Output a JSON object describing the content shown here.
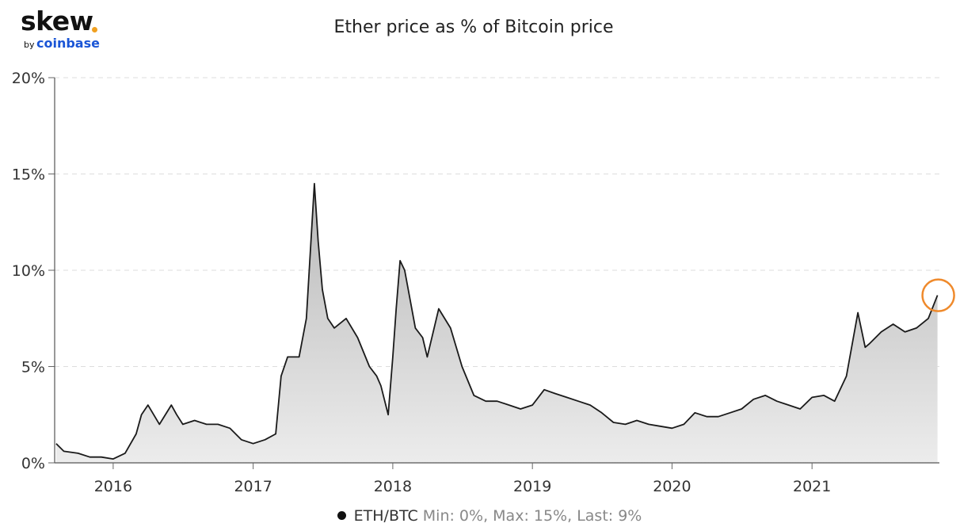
{
  "logo": {
    "main": "skew",
    "by": "by",
    "sub": "coinbase",
    "accent_color": "#f0a020",
    "sub_color": "#1a55d6"
  },
  "legend": {
    "name": "ETH/BTC",
    "stats": "Min: 0%, Max: 15%, Last: 9%"
  },
  "chart_data": {
    "type": "area",
    "title": "Ether price as % of Bitcoin price",
    "xlabel": "",
    "ylabel": "",
    "ylim": [
      0,
      20
    ],
    "xlim": [
      "2015-08-01",
      "2021-11-30"
    ],
    "y_ticks": [
      0,
      5,
      10,
      15,
      20
    ],
    "y_tick_labels": [
      "0%",
      "5%",
      "10%",
      "15%",
      "20%"
    ],
    "x_ticks": [
      "2016-01-01",
      "2017-01-01",
      "2018-01-01",
      "2019-01-01",
      "2020-01-01",
      "2021-01-01"
    ],
    "x_tick_labels": [
      "2016",
      "2017",
      "2018",
      "2019",
      "2020",
      "2021"
    ],
    "grid": "horizontal-dashed",
    "legend_position": "bottom-center",
    "line_color": "#1a1a1a",
    "fill_top_color": "#b8b8b8",
    "fill_bottom_color": "#ececec",
    "highlight_circle_color": "#ef8a2c",
    "series": [
      {
        "name": "ETH/BTC",
        "x": [
          "2015-08-05",
          "2015-08-25",
          "2015-10-01",
          "2015-11-01",
          "2015-12-01",
          "2016-01-01",
          "2016-02-01",
          "2016-03-01",
          "2016-03-15",
          "2016-04-01",
          "2016-05-01",
          "2016-06-01",
          "2016-06-15",
          "2016-07-01",
          "2016-08-01",
          "2016-09-01",
          "2016-10-01",
          "2016-11-01",
          "2016-12-01",
          "2017-01-01",
          "2017-02-01",
          "2017-03-01",
          "2017-03-15",
          "2017-04-01",
          "2017-05-01",
          "2017-05-20",
          "2017-06-10",
          "2017-06-20",
          "2017-07-01",
          "2017-07-15",
          "2017-08-01",
          "2017-09-01",
          "2017-10-01",
          "2017-11-01",
          "2017-11-20",
          "2017-12-01",
          "2017-12-20",
          "2018-01-01",
          "2018-01-10",
          "2018-01-20",
          "2018-02-01",
          "2018-03-01",
          "2018-03-20",
          "2018-04-01",
          "2018-05-01",
          "2018-06-01",
          "2018-07-01",
          "2018-08-01",
          "2018-09-01",
          "2018-10-01",
          "2018-11-01",
          "2018-12-01",
          "2019-01-01",
          "2019-02-01",
          "2019-03-01",
          "2019-04-01",
          "2019-05-01",
          "2019-06-01",
          "2019-07-01",
          "2019-08-01",
          "2019-09-01",
          "2019-10-01",
          "2019-11-01",
          "2019-12-01",
          "2020-01-01",
          "2020-02-01",
          "2020-03-01",
          "2020-04-01",
          "2020-05-01",
          "2020-06-01",
          "2020-07-01",
          "2020-08-01",
          "2020-09-01",
          "2020-10-01",
          "2020-11-01",
          "2020-12-01",
          "2021-01-01",
          "2021-02-01",
          "2021-03-01",
          "2021-04-01",
          "2021-05-01",
          "2021-05-20",
          "2021-06-01",
          "2021-07-01",
          "2021-08-01",
          "2021-09-01",
          "2021-10-01",
          "2021-11-01",
          "2021-11-25"
        ],
        "values": [
          1.0,
          0.6,
          0.5,
          0.3,
          0.3,
          0.2,
          0.5,
          1.5,
          2.5,
          3.0,
          2.0,
          3.0,
          2.5,
          2.0,
          2.2,
          2.0,
          2.0,
          1.8,
          1.2,
          1.0,
          1.2,
          1.5,
          4.5,
          5.5,
          5.5,
          7.5,
          14.5,
          11.5,
          9.0,
          7.5,
          7.0,
          7.5,
          6.5,
          5.0,
          4.5,
          4.0,
          2.5,
          5.5,
          8.0,
          10.5,
          10.0,
          7.0,
          6.5,
          5.5,
          8.0,
          7.0,
          5.0,
          3.5,
          3.2,
          3.2,
          3.0,
          2.8,
          3.0,
          3.8,
          3.6,
          3.4,
          3.2,
          3.0,
          2.6,
          2.1,
          2.0,
          2.2,
          2.0,
          1.9,
          1.8,
          2.0,
          2.6,
          2.4,
          2.4,
          2.6,
          2.8,
          3.3,
          3.5,
          3.2,
          3.0,
          2.8,
          3.4,
          3.5,
          3.2,
          4.5,
          7.8,
          6.0,
          6.2,
          6.8,
          7.2,
          6.8,
          7.0,
          7.5,
          8.7
        ]
      }
    ],
    "highlight": {
      "x": "2021-11-25",
      "y": 8.7
    }
  }
}
